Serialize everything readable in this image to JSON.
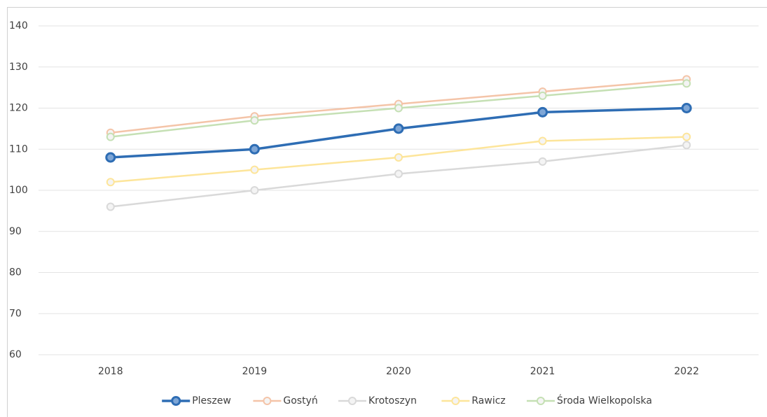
{
  "chart_data": {
    "type": "line",
    "categories": [
      "2018",
      "2019",
      "2020",
      "2021",
      "2022"
    ],
    "series": [
      {
        "name": "Pleszew",
        "color": "#2e6db4",
        "values": [
          108,
          110,
          115,
          119,
          120
        ]
      },
      {
        "name": "Gostyń",
        "color": "#f4c4a8",
        "values": [
          114,
          118,
          121,
          124,
          127
        ]
      },
      {
        "name": "Krotoszyn",
        "color": "#d9d9d9",
        "values": [
          96,
          100,
          104,
          107,
          111
        ]
      },
      {
        "name": "Rawicz",
        "color": "#fde59a",
        "values": [
          102,
          105,
          108,
          112,
          113
        ]
      },
      {
        "name": "Środa Wielkopolska",
        "color": "#c5e0b4",
        "values": [
          113,
          117,
          120,
          123,
          126
        ]
      }
    ],
    "ylim": [
      60,
      140
    ],
    "yticks": [
      60,
      70,
      80,
      90,
      100,
      110,
      120,
      130,
      140
    ],
    "grid": true,
    "legend": "bottom"
  }
}
